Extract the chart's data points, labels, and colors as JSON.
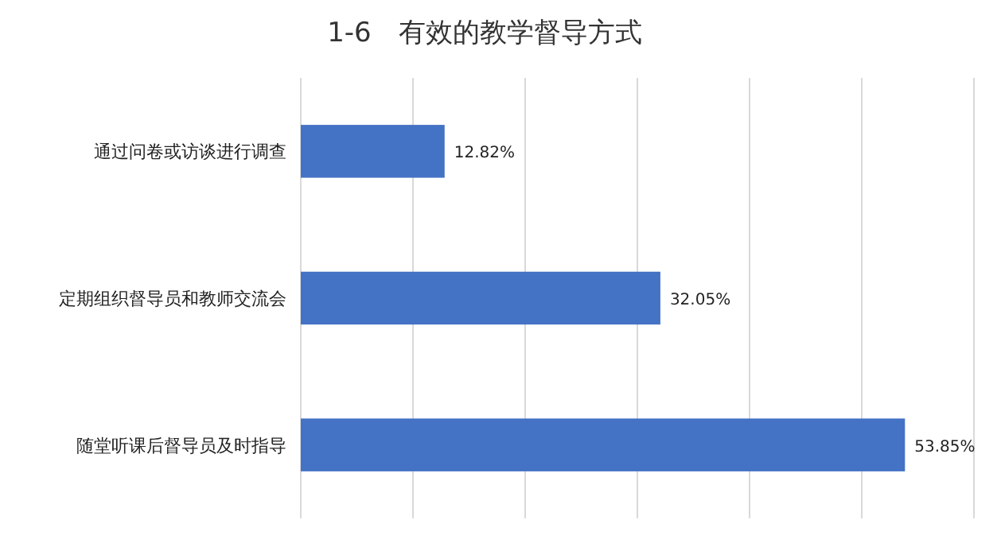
{
  "chart_data": {
    "type": "bar",
    "orientation": "horizontal",
    "title": "1-6　有效的教学督导方式",
    "categories": [
      "通过问卷或访谈进行调查",
      "定期组织督导员和教师交流会",
      "随堂听课后督导员及时指导"
    ],
    "values": [
      12.82,
      32.05,
      53.85
    ],
    "color": "#4472c4",
    "value_labels": [
      "12.82%",
      "32.05%",
      "53.85%"
    ],
    "xlim": [
      0,
      60
    ],
    "xticks": [
      {
        "value": 0,
        "label": null
      },
      {
        "value": 10,
        "label": null
      },
      {
        "value": 20,
        "label": null
      },
      {
        "value": 30,
        "label": null
      },
      {
        "value": 40,
        "label": null
      },
      {
        "value": 50,
        "label": null
      },
      {
        "value": 60,
        "label": null
      }
    ],
    "grid": "x"
  }
}
